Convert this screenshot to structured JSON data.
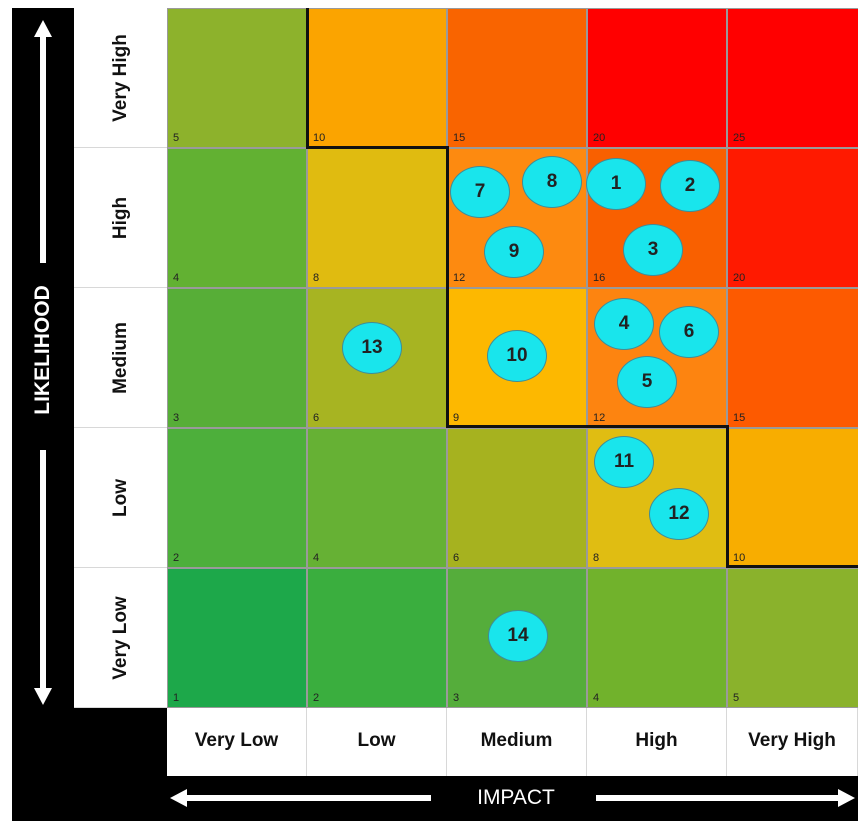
{
  "chart_data": {
    "type": "heatmap",
    "title": "",
    "xlabel": "IMPACT",
    "ylabel": "LIKELIHOOD",
    "x_categories": [
      "Very Low",
      "Low",
      "Medium",
      "High",
      "Very High"
    ],
    "y_categories": [
      "Very High",
      "High",
      "Medium",
      "Low",
      "Very Low"
    ],
    "cells": [
      [
        5,
        10,
        15,
        20,
        25
      ],
      [
        4,
        8,
        12,
        16,
        20
      ],
      [
        3,
        6,
        9,
        12,
        15
      ],
      [
        2,
        4,
        6,
        8,
        10
      ],
      [
        1,
        2,
        3,
        4,
        5
      ]
    ],
    "cell_colors": [
      [
        "#8db22c",
        "#fba400",
        "#f96400",
        "#ff0000",
        "#ff0000"
      ],
      [
        "#62b132",
        "#e0bb10",
        "#fd8a10",
        "#f96000",
        "#ff1a00"
      ],
      [
        "#57ae37",
        "#a7b422",
        "#fdb800",
        "#fd8410",
        "#fd5a00"
      ],
      [
        "#4daf3b",
        "#66b134",
        "#a6b21f",
        "#e0bd12",
        "#f8ad00"
      ],
      [
        "#1da84a",
        "#3aae3e",
        "#55ad3b",
        "#71b22c",
        "#8ab22c"
      ]
    ],
    "risks": [
      {
        "id": "1",
        "impact": "High",
        "likelihood": "High"
      },
      {
        "id": "2",
        "impact": "High",
        "likelihood": "High"
      },
      {
        "id": "3",
        "impact": "High",
        "likelihood": "High"
      },
      {
        "id": "4",
        "impact": "High",
        "likelihood": "Medium"
      },
      {
        "id": "5",
        "impact": "High",
        "likelihood": "Medium"
      },
      {
        "id": "6",
        "impact": "High",
        "likelihood": "Medium"
      },
      {
        "id": "7",
        "impact": "Medium",
        "likelihood": "High"
      },
      {
        "id": "8",
        "impact": "Medium",
        "likelihood": "High"
      },
      {
        "id": "9",
        "impact": "Medium",
        "likelihood": "High"
      },
      {
        "id": "10",
        "impact": "Medium",
        "likelihood": "Medium"
      },
      {
        "id": "11",
        "impact": "High",
        "likelihood": "Low"
      },
      {
        "id": "12",
        "impact": "High",
        "likelihood": "Low"
      },
      {
        "id": "13",
        "impact": "Low",
        "likelihood": "Medium"
      },
      {
        "id": "14",
        "impact": "Medium",
        "likelihood": "Very Low"
      }
    ],
    "marker_color": "#19e5ec",
    "grid": true,
    "legend": "none"
  }
}
